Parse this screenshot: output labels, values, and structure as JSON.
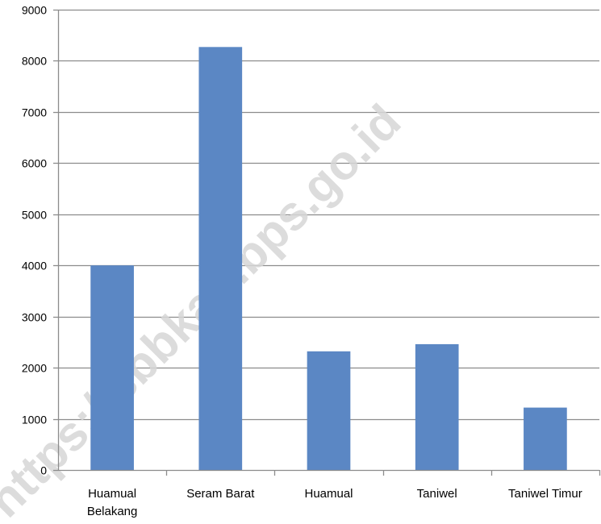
{
  "chart_data": {
    "type": "bar",
    "categories": [
      "Huamual Belakang",
      "Seram Barat",
      "Huamual",
      "Taniwel",
      "Taniwel Timur"
    ],
    "category_label_lines": [
      [
        "Huamual",
        "Belakang"
      ],
      [
        "Seram Barat"
      ],
      [
        "Huamual"
      ],
      [
        "Taniwel"
      ],
      [
        "Taniwel Timur"
      ]
    ],
    "values": [
      4000,
      8270,
      2320,
      2460,
      1220
    ],
    "title": "",
    "xlabel": "",
    "ylabel": "",
    "ylim": [
      0,
      9000
    ],
    "yticks": [
      0,
      1000,
      2000,
      3000,
      4000,
      5000,
      6000,
      7000,
      8000,
      9000
    ],
    "grid": true,
    "legend": "none",
    "bar_color": "#5b87c4",
    "grid_color": "#8c8c8c"
  },
  "watermark": {
    "text": "https://sbbkab.bps.go.id",
    "color": "#d6d6d6"
  }
}
